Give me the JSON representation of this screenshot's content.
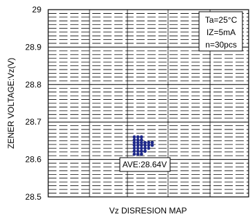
{
  "chart_data": {
    "type": "scatter",
    "title": "",
    "xlabel": "Vz DISRESION MAP",
    "ylabel": "ZENER VOLTAGE:Vz(V)",
    "ylim": [
      28.5,
      29.0
    ],
    "y_ticks": [
      "29",
      "28.9",
      "28.8",
      "28.7",
      "28.6",
      "28.5"
    ],
    "y_tick_values": [
      29.0,
      28.9,
      28.8,
      28.7,
      28.6,
      28.5
    ],
    "x_tick_labels": [],
    "grid": true,
    "grid_style": "dashed",
    "legend": {
      "placement": "top-right",
      "lines": [
        "Ta=25°C",
        "IZ=5mA",
        "n=30pcs"
      ]
    },
    "annotation": {
      "text": "AVE:28.64V",
      "value": 28.64
    },
    "point_color": "#1f2a8a",
    "series": [
      {
        "points": [
          {
            "y": 28.66,
            "count": 3
          },
          {
            "y": 28.652,
            "count": 3
          },
          {
            "y": 28.645,
            "count": 6
          },
          {
            "y": 28.638,
            "count": 6
          },
          {
            "y": 28.63,
            "count": 5
          },
          {
            "y": 28.622,
            "count": 4
          },
          {
            "y": 28.614,
            "count": 3
          }
        ]
      }
    ]
  }
}
